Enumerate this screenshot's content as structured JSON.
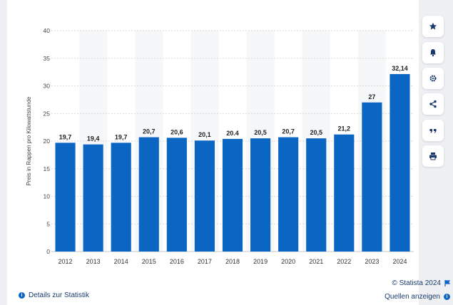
{
  "chart_data": {
    "type": "bar",
    "categories": [
      "2012",
      "2013",
      "2014",
      "2015",
      "2016",
      "2017",
      "2018",
      "2019",
      "2020",
      "2021",
      "2022",
      "2023",
      "2024"
    ],
    "values": [
      19.7,
      19.4,
      19.7,
      20.7,
      20.6,
      20.1,
      20.4,
      20.5,
      20.7,
      20.5,
      21.2,
      27,
      32.14
    ],
    "value_labels": [
      "19,7",
      "19,4",
      "19,7",
      "20,7",
      "20,6",
      "20,1",
      "20.4",
      "20,5",
      "20,7",
      "20,5",
      "21,2",
      "27",
      "32,14"
    ],
    "ylabel": "Preis in Rappen pro Kilowattstunde",
    "ylim": [
      0,
      40
    ],
    "yticks": [
      0,
      5,
      10,
      15,
      20,
      25,
      30,
      35,
      40
    ],
    "grid": true,
    "bar_color": "#0b66c3"
  },
  "footer": {
    "details_label": "Details zur Statistik",
    "credit": "© Statista 2024",
    "sources_label": "Quellen anzeigen"
  },
  "sidebar": {
    "buttons": [
      "star-icon",
      "bell-icon",
      "gear-icon",
      "share-icon",
      "quote-icon",
      "print-icon"
    ]
  },
  "colors": {
    "accent": "#0b66c3",
    "text": "#1a3a6b"
  }
}
